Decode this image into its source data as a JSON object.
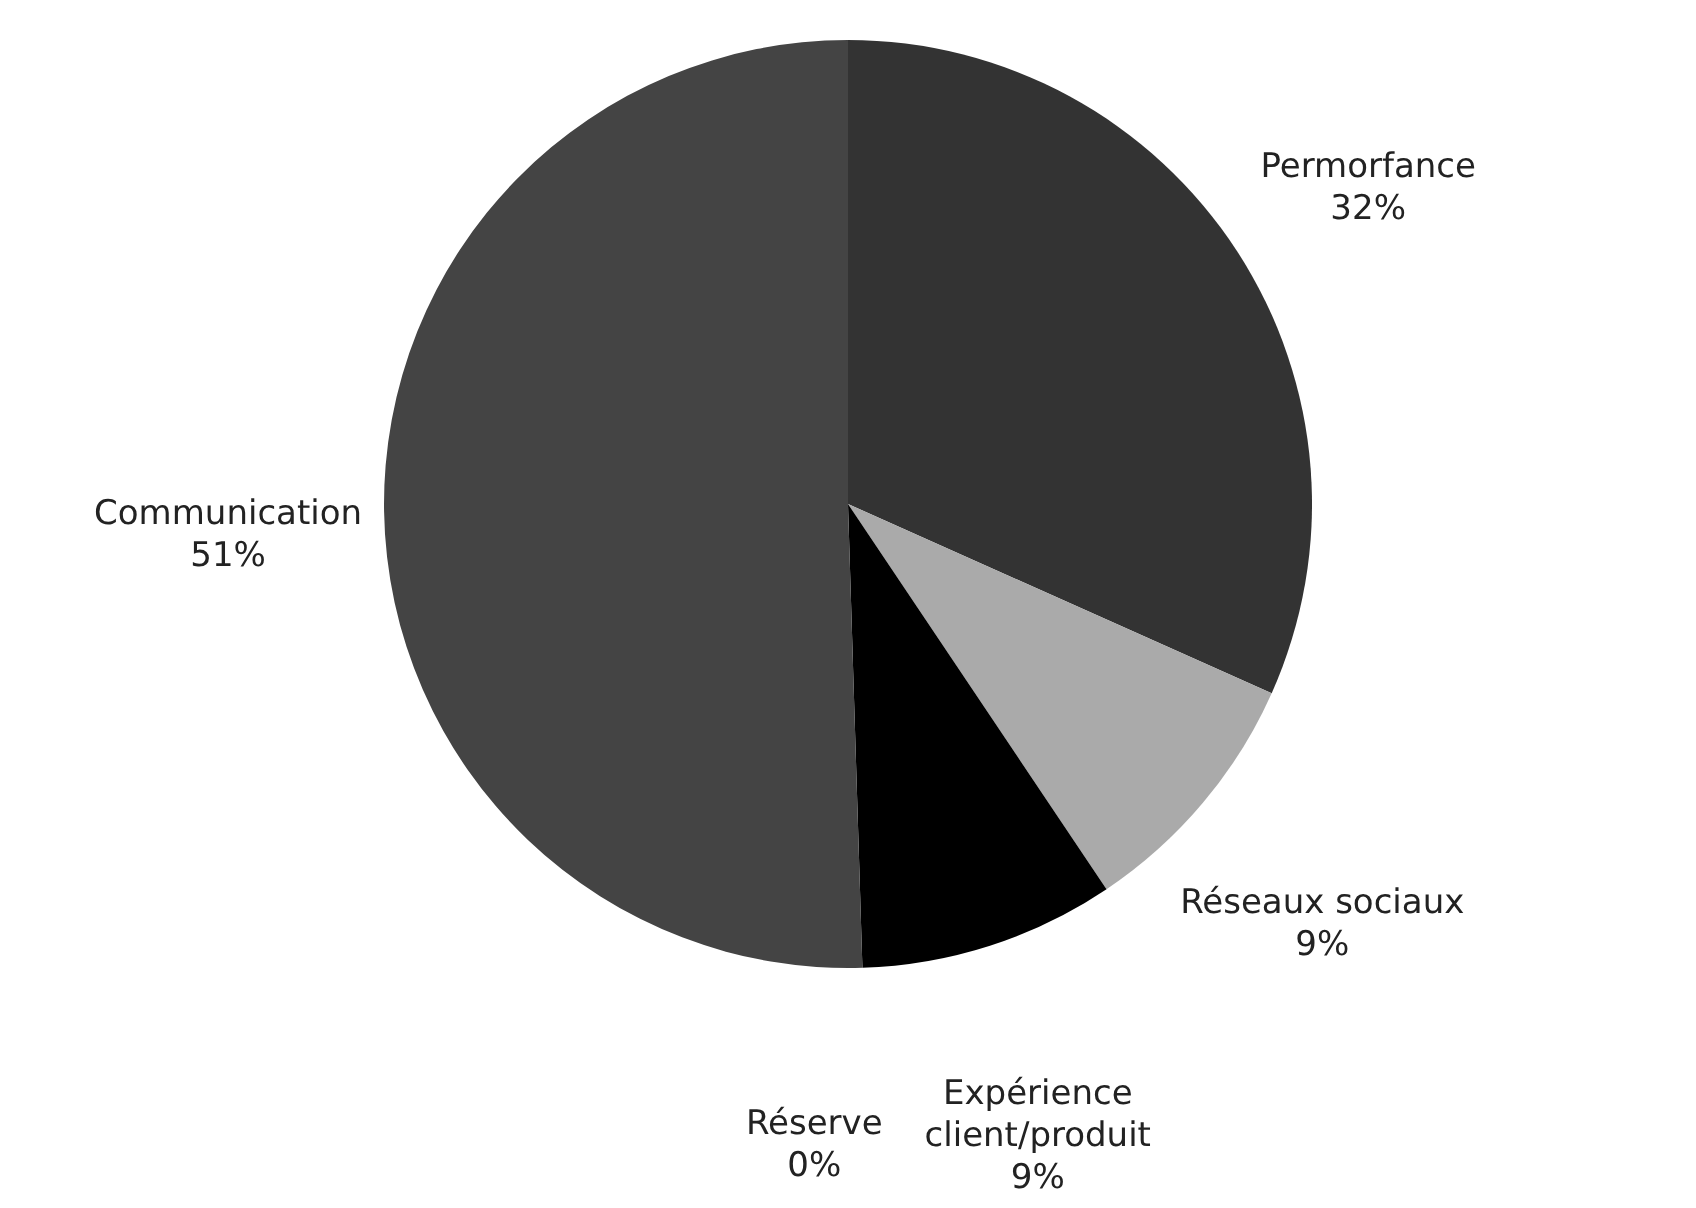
{
  "chart_data": {
    "type": "pie",
    "categories": [
      "Permorfance",
      "Réseaux sociaux",
      "Expérience client/produit",
      "Réserve",
      "Communication"
    ],
    "values": [
      32,
      9,
      9,
      0,
      51
    ],
    "value_labels": [
      "32%",
      "9%",
      "9%",
      "0%",
      "51%"
    ],
    "colors": [
      "#333333",
      "#aaaaaa",
      "#000000",
      "#aaaaaa",
      "#444444"
    ]
  }
}
